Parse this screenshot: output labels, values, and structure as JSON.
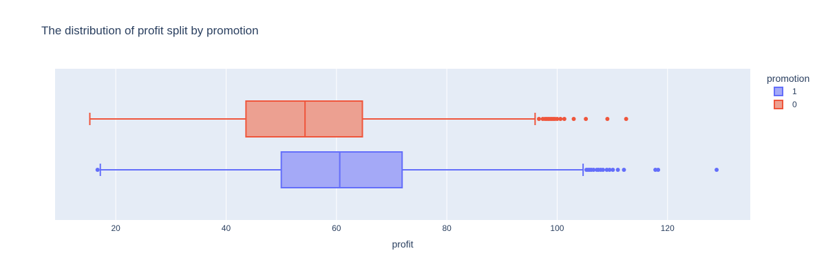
{
  "chart_data": {
    "type": "box",
    "orientation": "horizontal",
    "title": "The distribution of profit split by promotion",
    "xlabel": "profit",
    "ylabel": "",
    "xlim": [
      9,
      135
    ],
    "x_ticks": [
      20,
      40,
      60,
      80,
      100,
      120
    ],
    "grid": true,
    "legend": {
      "title": "promotion",
      "position": "top-right"
    },
    "series": [
      {
        "name": "1",
        "color": "#636efa",
        "fill": "#a4a9f7",
        "whisker_low": 17.2,
        "q1": 50,
        "median": 60.6,
        "q3": 71.9,
        "whisker_high": 104.7,
        "outliers": [
          16.7,
          105.3,
          105.6,
          105.9,
          106.2,
          106.6,
          107.2,
          107.5,
          107.9,
          108.3,
          109.0,
          109.5,
          110.1,
          111.0,
          112.1,
          117.8,
          118.3,
          128.9
        ]
      },
      {
        "name": "0",
        "color": "#ef553b",
        "fill": "#eca091",
        "whisker_low": 15.3,
        "q1": 43.6,
        "median": 54.3,
        "q3": 64.7,
        "whisker_high": 96.0,
        "outliers": [
          96.7,
          97.4,
          97.8,
          98.1,
          98.4,
          98.7,
          99.0,
          99.3,
          99.6,
          100.0,
          100.6,
          101.3,
          103.0,
          105.2,
          109.1,
          112.5
        ]
      }
    ]
  }
}
